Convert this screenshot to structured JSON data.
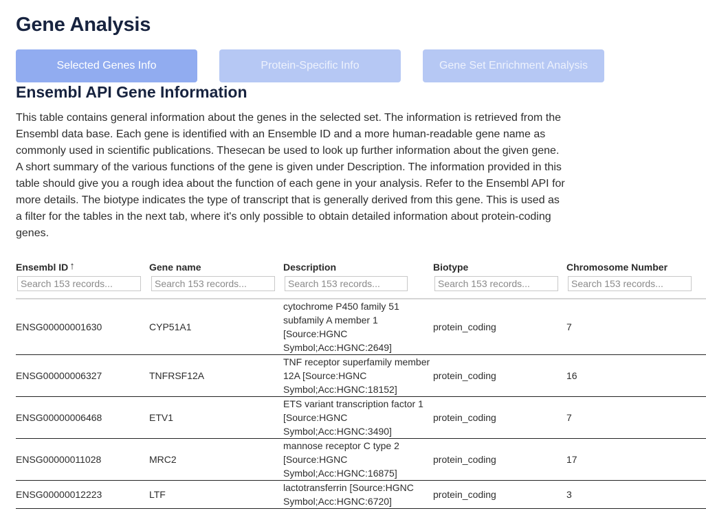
{
  "page": {
    "title": "Gene Analysis"
  },
  "tabs": [
    {
      "label": "Selected Genes Info",
      "active": true
    },
    {
      "label": "Protein-Specific Info",
      "active": false
    },
    {
      "label": "Gene Set Enrichment Analysis",
      "active": false
    }
  ],
  "section": {
    "title": "Ensembl API Gene Information",
    "description": "This table contains general information about the genes in the selected set. The information is retrieved from the Ensembl data base. Each gene is identified with an Ensemble ID and a more human-readable gene name as commonly used in scientific publications. Thesecan be used to look up further information about the given gene. A short summary of the various functions of the gene is given under Description. The information provided in this table should give you a rough idea about the function of each gene in your analysis. Refer to the Ensembl API for more details. The biotype indicates the type of transcript that is generally derived from this gene. This is used as a filter for the tables in the next tab, where it's only possible to obtain detailed information about protein-coding genes."
  },
  "table": {
    "columns": [
      "Ensembl ID",
      "Gene name",
      "Description",
      "Biotype",
      "Chromosome Number"
    ],
    "sort_icon": "arrow-up-icon",
    "filter_placeholder": "Search 153 records...",
    "rows": [
      {
        "id": "ENSG00000001630",
        "name": "CYP51A1",
        "description": "cytochrome P450 family 51 subfamily A member 1 [Source:HGNC Symbol;Acc:HGNC:2649]",
        "biotype": "protein_coding",
        "chromosome": "7"
      },
      {
        "id": "ENSG00000006327",
        "name": "TNFRSF12A",
        "description": "TNF receptor superfamily member 12A [Source:HGNC Symbol;Acc:HGNC:18152]",
        "biotype": "protein_coding",
        "chromosome": "16"
      },
      {
        "id": "ENSG00000006468",
        "name": "ETV1",
        "description": "ETS variant transcription factor 1 [Source:HGNC Symbol;Acc:HGNC:3490]",
        "biotype": "protein_coding",
        "chromosome": "7"
      },
      {
        "id": "ENSG00000011028",
        "name": "MRC2",
        "description": "mannose receptor C type 2 [Source:HGNC Symbol;Acc:HGNC:16875]",
        "biotype": "protein_coding",
        "chromosome": "17"
      },
      {
        "id": "ENSG00000012223",
        "name": "LTF",
        "description": "lactotransferrin [Source:HGNC Symbol;Acc:HGNC:6720]",
        "biotype": "protein_coding",
        "chromosome": "3"
      }
    ]
  }
}
